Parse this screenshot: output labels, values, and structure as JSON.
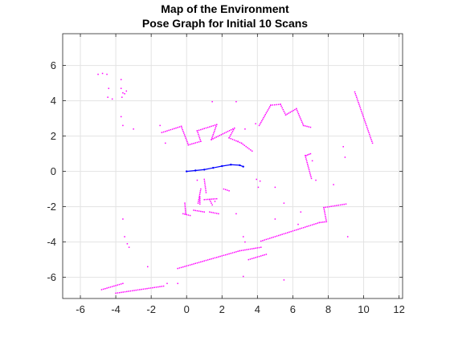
{
  "chart_data": {
    "type": "scatter",
    "title": "Map of the Environment",
    "subtitle": "Pose Graph for Initial 10 Scans",
    "xlabel": "",
    "ylabel": "",
    "xlim": [
      -7,
      12.2
    ],
    "ylim": [
      -7.2,
      7.8
    ],
    "xticks": [
      -6,
      -4,
      -2,
      0,
      2,
      4,
      6,
      8,
      10,
      12
    ],
    "yticks": [
      -6,
      -4,
      -2,
      0,
      2,
      4,
      6
    ],
    "grid": true,
    "colors": {
      "scan_points": "#ff00ff",
      "pose_graph": "#0000ff",
      "axes": "#262626",
      "grid": "#e3e3e3"
    },
    "series": [
      {
        "kind": "points",
        "segments": [
          [
            [
              -1.4,
              2.2
            ],
            [
              -0.3,
              2.55
            ]
          ],
          [
            [
              -0.3,
              2.55
            ],
            [
              0.1,
              1.5
            ]
          ],
          [
            [
              0.1,
              1.5
            ],
            [
              0.8,
              1.7
            ]
          ],
          [
            [
              0.8,
              1.7
            ],
            [
              0.6,
              2.3
            ]
          ],
          [
            [
              0.6,
              2.3
            ],
            [
              1.7,
              2.65
            ]
          ],
          [
            [
              1.7,
              2.65
            ],
            [
              1.4,
              1.8
            ]
          ],
          [
            [
              1.4,
              1.8
            ],
            [
              2.7,
              2.45
            ]
          ],
          [
            [
              2.7,
              2.45
            ],
            [
              2.4,
              1.9
            ]
          ],
          [
            [
              2.4,
              1.9
            ],
            [
              3.1,
              1.6
            ]
          ],
          [
            [
              3.1,
              1.6
            ],
            [
              3.7,
              1.15
            ]
          ],
          [
            [
              4.1,
              2.6
            ],
            [
              4.75,
              3.75
            ]
          ],
          [
            [
              4.75,
              3.75
            ],
            [
              5.3,
              3.8
            ]
          ],
          [
            [
              5.3,
              3.8
            ],
            [
              5.6,
              3.2
            ]
          ],
          [
            [
              5.6,
              3.2
            ],
            [
              6.2,
              3.55
            ]
          ],
          [
            [
              6.2,
              3.55
            ],
            [
              6.6,
              2.6
            ]
          ],
          [
            [
              6.6,
              2.6
            ],
            [
              7.0,
              2.5
            ]
          ],
          [
            [
              9.5,
              4.5
            ],
            [
              10.5,
              1.6
            ]
          ],
          [
            [
              6.7,
              0.9
            ],
            [
              7.05,
              -0.4
            ]
          ],
          [
            [
              6.75,
              0.9
            ],
            [
              7.0,
              1.0
            ]
          ],
          [
            [
              -0.5,
              -5.5
            ],
            [
              3.0,
              -4.5
            ]
          ],
          [
            [
              3.0,
              -4.5
            ],
            [
              4.2,
              -4.3
            ]
          ],
          [
            [
              3.5,
              -5.0
            ],
            [
              4.5,
              -4.7
            ]
          ],
          [
            [
              4.2,
              -3.95
            ],
            [
              7.5,
              -2.9
            ]
          ],
          [
            [
              7.5,
              -2.9
            ],
            [
              7.9,
              -2.85
            ]
          ],
          [
            [
              7.9,
              -2.85
            ],
            [
              7.75,
              -2.05
            ]
          ],
          [
            [
              7.75,
              -2.05
            ],
            [
              9.0,
              -1.85
            ]
          ],
          [
            [
              -4.8,
              -6.7
            ],
            [
              -3.6,
              -6.35
            ]
          ],
          [
            [
              -4.0,
              -6.9
            ],
            [
              -1.3,
              -6.5
            ]
          ],
          [
            [
              1.0,
              -0.45
            ],
            [
              1.1,
              -1.2
            ]
          ],
          [
            [
              1.0,
              -1.6
            ],
            [
              1.7,
              -1.55
            ]
          ],
          [
            [
              1.3,
              -1.6
            ],
            [
              1.45,
              -1.9
            ]
          ],
          [
            [
              0.8,
              -1.0
            ],
            [
              0.65,
              -1.8
            ]
          ],
          [
            [
              0.75,
              -1.45
            ],
            [
              0.75,
              -1.85
            ]
          ],
          [
            [
              0.4,
              -2.2
            ],
            [
              1.0,
              -2.3
            ]
          ],
          [
            [
              1.3,
              -2.3
            ],
            [
              1.8,
              -2.4
            ]
          ],
          [
            [
              2.1,
              -1.0
            ],
            [
              2.4,
              -1.1
            ]
          ],
          [
            [
              -0.1,
              -1.8
            ],
            [
              -0.05,
              -2.4
            ]
          ],
          [
            [
              -0.2,
              -2.4
            ],
            [
              0.2,
              -2.5
            ]
          ]
        ],
        "clusters": [
          [
            -5.0,
            5.5
          ],
          [
            -4.75,
            5.55
          ],
          [
            -4.5,
            5.5
          ],
          [
            -4.4,
            4.7
          ],
          [
            -4.45,
            4.2
          ],
          [
            -4.2,
            4.1
          ],
          [
            -3.7,
            5.2
          ],
          [
            -3.7,
            4.7
          ],
          [
            -3.6,
            4.45
          ],
          [
            -3.65,
            4.2
          ],
          [
            -3.4,
            4.55
          ],
          [
            -3.5,
            4.4
          ],
          [
            -3.7,
            3.1
          ],
          [
            -3.6,
            2.6
          ],
          [
            -3.0,
            2.4
          ],
          [
            -1.2,
            1.6
          ],
          [
            1.45,
            3.95
          ],
          [
            2.8,
            3.95
          ],
          [
            2.9,
            1.7
          ],
          [
            3.3,
            2.4
          ],
          [
            3.9,
            2.7
          ],
          [
            3.2,
            -3.7
          ],
          [
            3.3,
            -4.0
          ],
          [
            3.95,
            -0.45
          ],
          [
            4.05,
            -0.9
          ],
          [
            4.15,
            -0.55
          ],
          [
            5.0,
            -0.9
          ],
          [
            5.0,
            -2.7
          ],
          [
            5.5,
            -1.8
          ],
          [
            6.3,
            -3.0
          ],
          [
            6.45,
            -2.3
          ],
          [
            7.1,
            0.6
          ],
          [
            7.3,
            -0.5
          ],
          [
            8.85,
            1.4
          ],
          [
            8.95,
            0.8
          ],
          [
            9.1,
            -3.7
          ],
          [
            8.3,
            -0.75
          ],
          [
            5.5,
            -6.15
          ],
          [
            3.2,
            -5.95
          ],
          [
            -3.6,
            -2.7
          ],
          [
            -3.5,
            -3.7
          ],
          [
            -3.35,
            -4.1
          ],
          [
            -3.25,
            -4.3
          ],
          [
            -2.2,
            -5.4
          ],
          [
            -1.1,
            -6.35
          ],
          [
            -0.5,
            -6.35
          ],
          [
            2.8,
            -2.4
          ],
          [
            1.6,
            -1.7
          ],
          [
            0.6,
            -0.5
          ],
          [
            -1.5,
            2.6
          ]
        ]
      },
      {
        "kind": "pose_graph",
        "x": [
          0.0,
          0.5,
          1.0,
          1.5,
          2.0,
          2.5,
          3.0,
          3.2
        ],
        "y": [
          0.0,
          0.05,
          0.1,
          0.2,
          0.3,
          0.38,
          0.35,
          0.27
        ]
      }
    ]
  }
}
